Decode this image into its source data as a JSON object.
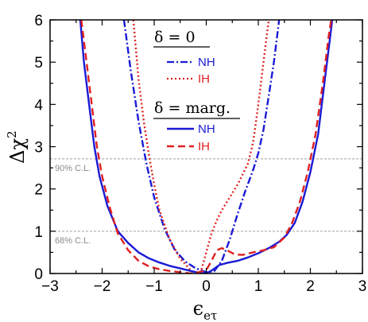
{
  "chart_data": {
    "type": "line",
    "xlabel": "ϵ_eτ",
    "xlabel_main": "ϵ",
    "xlabel_sub": "eτ",
    "ylabel": "Δχ²",
    "ylabel_main": "Δχ",
    "ylabel_sup": "2",
    "xlim": [
      -3,
      3
    ],
    "ylim": [
      0,
      6
    ],
    "xticks": [
      -3,
      -2,
      -1,
      0,
      1,
      2,
      3
    ],
    "yticks": [
      0,
      1,
      2,
      3,
      4,
      5,
      6
    ],
    "grid": false,
    "reference_lines": [
      {
        "y": 2.71,
        "label": "90% C.L.",
        "color": "#a0a0a0"
      },
      {
        "y": 1.0,
        "label": "68% C.L.",
        "color": "#a0a0a0"
      }
    ],
    "legend": {
      "placement": "top-center",
      "groups": [
        {
          "heading": "δ = 0",
          "entries": [
            "NH",
            "IH"
          ]
        },
        {
          "heading": "δ = marg.",
          "entries": [
            "NH",
            "IH"
          ]
        }
      ]
    },
    "series": [
      {
        "name": "NH",
        "group": "δ = 0",
        "color": "#1a1ad6",
        "dash": "dashdot",
        "points": [
          [
            -1.58,
            6.0
          ],
          [
            -1.45,
            4.8
          ],
          [
            -1.3,
            3.6
          ],
          [
            -1.15,
            2.6
          ],
          [
            -1.0,
            1.8
          ],
          [
            -0.8,
            1.05
          ],
          [
            -0.6,
            0.55
          ],
          [
            -0.4,
            0.28
          ],
          [
            -0.2,
            0.12
          ],
          [
            0.0,
            0.03
          ],
          [
            0.15,
            0.05
          ],
          [
            0.3,
            0.3
          ],
          [
            0.45,
            0.8
          ],
          [
            0.6,
            1.4
          ],
          [
            0.75,
            1.95
          ],
          [
            0.9,
            2.45
          ],
          [
            1.0,
            2.85
          ],
          [
            1.1,
            3.4
          ],
          [
            1.2,
            4.2
          ],
          [
            1.3,
            5.0
          ],
          [
            1.4,
            6.0
          ]
        ]
      },
      {
        "name": "IH",
        "group": "δ = 0",
        "color": "#e02020",
        "dash": "dotted",
        "points": [
          [
            -1.4,
            6.0
          ],
          [
            -1.3,
            4.6
          ],
          [
            -1.2,
            3.6
          ],
          [
            -1.1,
            2.8
          ],
          [
            -1.0,
            2.1
          ],
          [
            -0.9,
            1.5
          ],
          [
            -0.7,
            0.8
          ],
          [
            -0.5,
            0.35
          ],
          [
            -0.3,
            0.08
          ],
          [
            -0.2,
            0.0
          ],
          [
            -0.1,
            0.05
          ],
          [
            0.0,
            0.5
          ],
          [
            0.1,
            0.95
          ],
          [
            0.2,
            1.25
          ],
          [
            0.3,
            1.5
          ],
          [
            0.4,
            1.7
          ],
          [
            0.5,
            1.9
          ],
          [
            0.6,
            2.1
          ],
          [
            0.7,
            2.35
          ],
          [
            0.8,
            2.6
          ],
          [
            0.9,
            3.1
          ],
          [
            1.0,
            4.0
          ],
          [
            1.1,
            5.0
          ],
          [
            1.2,
            6.0
          ]
        ]
      },
      {
        "name": "NH",
        "group": "δ = marg.",
        "color": "#1a1ad6",
        "dash": "solid",
        "points": [
          [
            -2.42,
            6.0
          ],
          [
            -2.35,
            5.0
          ],
          [
            -2.25,
            4.0
          ],
          [
            -2.15,
            3.0
          ],
          [
            -2.05,
            2.3
          ],
          [
            -1.9,
            1.6
          ],
          [
            -1.7,
            1.0
          ],
          [
            -1.5,
            0.72
          ],
          [
            -1.3,
            0.5
          ],
          [
            -1.1,
            0.36
          ],
          [
            -0.9,
            0.26
          ],
          [
            -0.7,
            0.18
          ],
          [
            -0.5,
            0.12
          ],
          [
            -0.3,
            0.06
          ],
          [
            -0.1,
            0.01
          ],
          [
            0.0,
            0.0
          ],
          [
            0.1,
            0.07
          ],
          [
            0.25,
            0.2
          ],
          [
            0.4,
            0.25
          ],
          [
            0.6,
            0.3
          ],
          [
            0.8,
            0.38
          ],
          [
            1.0,
            0.48
          ],
          [
            1.2,
            0.6
          ],
          [
            1.4,
            0.75
          ],
          [
            1.55,
            0.92
          ],
          [
            1.7,
            1.2
          ],
          [
            1.85,
            1.7
          ],
          [
            2.0,
            2.4
          ],
          [
            2.15,
            3.3
          ],
          [
            2.28,
            4.6
          ],
          [
            2.38,
            5.6
          ],
          [
            2.42,
            6.0
          ]
        ]
      },
      {
        "name": "IH",
        "group": "δ = marg.",
        "color": "#e02020",
        "dash": "dashed",
        "points": [
          [
            -2.4,
            6.0
          ],
          [
            -2.3,
            5.0
          ],
          [
            -2.2,
            4.0
          ],
          [
            -2.1,
            3.0
          ],
          [
            -2.0,
            2.3
          ],
          [
            -1.85,
            1.55
          ],
          [
            -1.7,
            0.95
          ],
          [
            -1.5,
            0.55
          ],
          [
            -1.3,
            0.3
          ],
          [
            -1.1,
            0.17
          ],
          [
            -0.9,
            0.1
          ],
          [
            -0.7,
            0.06
          ],
          [
            -0.5,
            0.03
          ],
          [
            -0.3,
            0.0
          ],
          [
            -0.15,
            0.03
          ],
          [
            0.0,
            0.08
          ],
          [
            0.1,
            0.3
          ],
          [
            0.2,
            0.55
          ],
          [
            0.3,
            0.6
          ],
          [
            0.4,
            0.55
          ],
          [
            0.55,
            0.45
          ],
          [
            0.7,
            0.44
          ],
          [
            0.9,
            0.5
          ],
          [
            1.1,
            0.55
          ],
          [
            1.3,
            0.62
          ],
          [
            1.5,
            0.85
          ],
          [
            1.65,
            1.2
          ],
          [
            1.8,
            1.7
          ],
          [
            1.95,
            2.4
          ],
          [
            2.1,
            3.3
          ],
          [
            2.25,
            4.6
          ],
          [
            2.35,
            5.6
          ],
          [
            2.4,
            6.0
          ]
        ]
      }
    ]
  }
}
